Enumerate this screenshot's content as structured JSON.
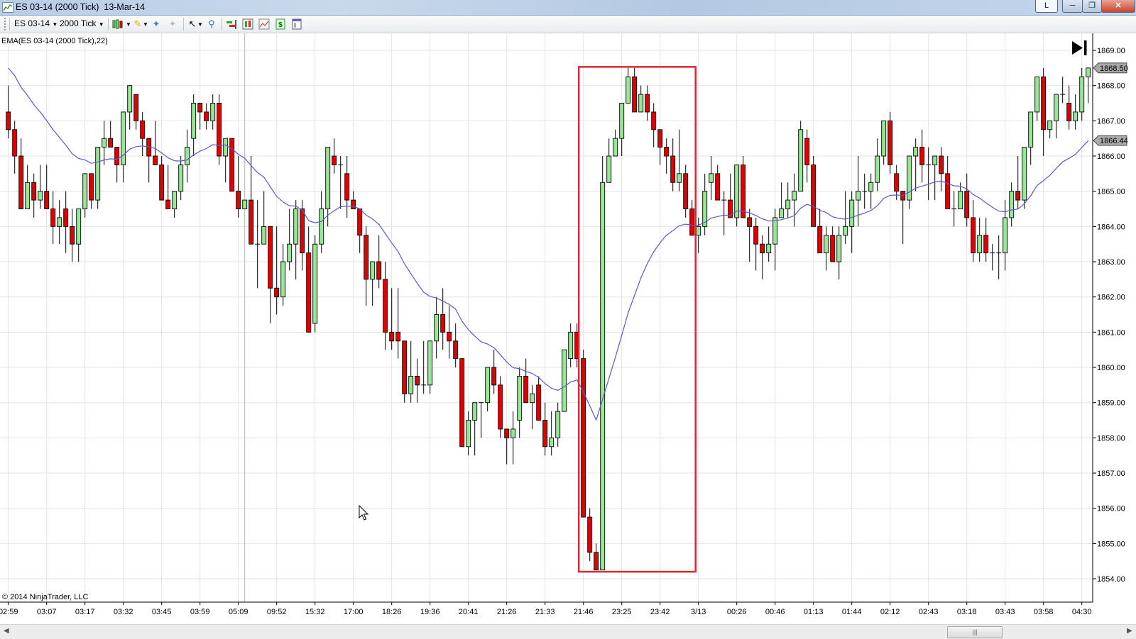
{
  "window": {
    "title": "ES 03-14 (2000 Tick)  13-Mar-14",
    "l_button": "L",
    "minimize_icon": "minimize-icon",
    "restore_icon": "restore-icon",
    "close_icon": "close-icon"
  },
  "toolbar": {
    "instrument": "ES 03-14",
    "interval": "2000 Tick",
    "icons": [
      "chart-style-icon",
      "drawing-pencil-icon",
      "add-indicator-icon",
      "remove-indicator-icon",
      "pointer-icon",
      "zoom-icon",
      "orders-icon",
      "strategy-icon",
      "chart-trader-icon",
      "dollar-icon",
      "properties-icon"
    ]
  },
  "indicator_label": "EMA(ES 03-14 (2000 Tick),22)",
  "copyright": "© 2014 NinjaTrader, LLC",
  "price_tags": {
    "last_price": "1868.50",
    "ema_value": "1866.44"
  },
  "colors": {
    "up": "#98e698",
    "down": "#e00000",
    "ema": "#5a5ac8",
    "highlight_box": "#e0282e",
    "grid": "#e3e3e3"
  },
  "chart_data": {
    "type": "candlestick",
    "instrument": "ES 03-14",
    "ylim": [
      1854,
      1869
    ],
    "y_ticks": [
      "1854.00",
      "1855.00",
      "1856.00",
      "1857.00",
      "1858.00",
      "1859.00",
      "1860.00",
      "1861.00",
      "1862.00",
      "1863.00",
      "1864.00",
      "1865.00",
      "1866.00",
      "1867.00",
      "1868.00",
      "1869.00"
    ],
    "x_ticks": [
      "02:59",
      "03:07",
      "03:17",
      "03:32",
      "03:45",
      "03:59",
      "05:09",
      "09:52",
      "15:32",
      "17:00",
      "18:26",
      "19:36",
      "20:41",
      "21:26",
      "21:33",
      "21:46",
      "23:25",
      "23:42",
      "3/13",
      "00:26",
      "00:46",
      "01:13",
      "01:44",
      "02:12",
      "02:43",
      "03:18",
      "03:43",
      "03:58",
      "04:30"
    ],
    "grid": true,
    "indicator": {
      "type": "EMA",
      "period": 22,
      "last_value": 1866.44
    },
    "highlight_box": {
      "from_bar": 91,
      "to_bar": 108,
      "price_top": 1868.5,
      "price_bottom": 1854.25
    },
    "ohlc_fields": [
      "open",
      "high",
      "low",
      "close"
    ],
    "bars": [
      [
        1867.25,
        1868,
        1866.5,
        1866.75
      ],
      [
        1866.75,
        1867,
        1865.5,
        1866
      ],
      [
        1866,
        1866.5,
        1864.5,
        1864.5
      ],
      [
        1864.5,
        1865.75,
        1864.5,
        1865.25
      ],
      [
        1865.25,
        1865.5,
        1864.25,
        1864.75
      ],
      [
        1864.75,
        1865.75,
        1864.5,
        1865
      ],
      [
        1865,
        1865.75,
        1864.5,
        1864.5
      ],
      [
        1864.5,
        1865,
        1863.5,
        1864
      ],
      [
        1864,
        1864.75,
        1863.5,
        1864.25
      ],
      [
        1864.5,
        1865,
        1863.25,
        1864
      ],
      [
        1864,
        1864.5,
        1863,
        1863.5
      ],
      [
        1863.5,
        1864.5,
        1863,
        1864.5
      ],
      [
        1864.5,
        1865.5,
        1864.25,
        1865.5
      ],
      [
        1865.5,
        1865.5,
        1864.5,
        1864.75
      ],
      [
        1864.75,
        1866.25,
        1864.5,
        1866.25
      ],
      [
        1866.25,
        1867,
        1865.75,
        1866.5
      ],
      [
        1866.5,
        1867,
        1866.25,
        1866.25
      ],
      [
        1866.25,
        1866.25,
        1865.25,
        1865.75
      ],
      [
        1865.75,
        1867.25,
        1865.25,
        1867.25
      ],
      [
        1867.25,
        1868,
        1866.75,
        1868
      ],
      [
        1867.75,
        1867.75,
        1866.75,
        1867
      ],
      [
        1867,
        1867.25,
        1866,
        1866.5
      ],
      [
        1866.5,
        1866.5,
        1865.25,
        1866
      ],
      [
        1866,
        1867,
        1865.75,
        1865.75
      ],
      [
        1865.75,
        1866,
        1864.75,
        1864.75
      ],
      [
        1864.75,
        1865.75,
        1864.5,
        1864.5
      ],
      [
        1864.5,
        1865,
        1864.25,
        1865
      ],
      [
        1865,
        1866,
        1864.75,
        1865.75
      ],
      [
        1865.75,
        1866.75,
        1865.25,
        1866.25
      ],
      [
        1866.5,
        1867.75,
        1866,
        1867.5
      ],
      [
        1867.5,
        1867.5,
        1866.75,
        1867.25
      ],
      [
        1867.25,
        1867.5,
        1866.75,
        1867
      ],
      [
        1867,
        1867.75,
        1866.75,
        1867.5
      ],
      [
        1867.5,
        1867.75,
        1865.75,
        1866
      ],
      [
        1866,
        1866.5,
        1865.25,
        1866.5
      ],
      [
        1866.5,
        1866.5,
        1865,
        1865
      ],
      [
        1865,
        1866,
        1864.25,
        1864.5
      ],
      [
        1864.5,
        1864.75,
        1864.5,
        1864.75
      ],
      [
        1864.75,
        1866,
        1863.5,
        1863.5
      ],
      [
        1863.5,
        1864.75,
        1862.25,
        1863.5
      ],
      [
        1863.5,
        1865,
        1863.5,
        1864
      ],
      [
        1864,
        1864,
        1861.25,
        1862.25
      ],
      [
        1862.25,
        1864,
        1861.5,
        1862
      ],
      [
        1862,
        1863.5,
        1861.75,
        1863
      ],
      [
        1863,
        1864.5,
        1862.75,
        1863.5
      ],
      [
        1863.5,
        1864.75,
        1862.5,
        1864.5
      ],
      [
        1864.5,
        1864.75,
        1862.75,
        1863.25
      ],
      [
        1863.25,
        1864,
        1861,
        1861
      ],
      [
        1861.25,
        1863.75,
        1861,
        1863.5
      ],
      [
        1863.5,
        1865,
        1863.25,
        1864.5
      ],
      [
        1864.5,
        1866.25,
        1864,
        1866.25
      ],
      [
        1866,
        1866.5,
        1865.5,
        1865.75
      ],
      [
        1865.75,
        1866,
        1864.5,
        1865.75
      ],
      [
        1865.5,
        1866,
        1864.25,
        1864.75
      ],
      [
        1864.75,
        1865,
        1864.5,
        1864.5
      ],
      [
        1864.5,
        1864.5,
        1863.25,
        1863.75
      ],
      [
        1863.75,
        1864,
        1861.75,
        1862.5
      ],
      [
        1862.5,
        1863,
        1861.75,
        1863
      ],
      [
        1863,
        1863.75,
        1862.25,
        1862.5
      ],
      [
        1862.5,
        1863,
        1860.5,
        1861
      ],
      [
        1861,
        1862.25,
        1860.5,
        1860.75
      ],
      [
        1861,
        1862.25,
        1860.25,
        1860.75
      ],
      [
        1860.75,
        1860.75,
        1859,
        1859.25
      ],
      [
        1859.25,
        1860.75,
        1859,
        1859.75
      ],
      [
        1859.75,
        1860.25,
        1859,
        1859.5
      ],
      [
        1859.5,
        1860.75,
        1859.25,
        1859.5
      ],
      [
        1859.5,
        1860.75,
        1859.25,
        1860.75
      ],
      [
        1860.75,
        1862,
        1860.25,
        1861.5
      ],
      [
        1861.5,
        1862.25,
        1860.5,
        1861
      ],
      [
        1861,
        1861.75,
        1860.25,
        1860.75
      ],
      [
        1860.75,
        1861.25,
        1860,
        1860.25
      ],
      [
        1860.25,
        1860.25,
        1857.75,
        1857.75
      ],
      [
        1857.75,
        1858.75,
        1857.5,
        1858.5
      ],
      [
        1858.5,
        1859,
        1857.5,
        1859
      ],
      [
        1859,
        1859,
        1858,
        1859
      ],
      [
        1859,
        1860,
        1858.75,
        1860
      ],
      [
        1860,
        1860.5,
        1859.25,
        1859.5
      ],
      [
        1859.5,
        1859.75,
        1858,
        1858.25
      ],
      [
        1858.25,
        1858.25,
        1857.25,
        1858
      ],
      [
        1858,
        1858.75,
        1857.25,
        1858.25
      ],
      [
        1858.5,
        1860,
        1858,
        1859.75
      ],
      [
        1859.75,
        1860.25,
        1859,
        1859
      ],
      [
        1859,
        1859.5,
        1858.25,
        1859.25
      ],
      [
        1859.5,
        1859.75,
        1858.5,
        1858.5
      ],
      [
        1858.5,
        1859,
        1857.5,
        1857.75
      ],
      [
        1857.75,
        1858.75,
        1857.5,
        1858
      ],
      [
        1858,
        1859,
        1857.75,
        1858.75
      ],
      [
        1858.75,
        1860.5,
        1858.75,
        1860.5
      ],
      [
        1860.25,
        1861.25,
        1860,
        1861
      ],
      [
        1861,
        1861.25,
        1860,
        1860.25
      ],
      [
        1860.25,
        1860.5,
        1855.75,
        1855.75
      ],
      [
        1855.75,
        1856,
        1854.5,
        1854.75
      ],
      [
        1854.75,
        1855,
        1854.25,
        1854.25
      ],
      [
        1854.25,
        1866,
        1854.25,
        1865.25
      ],
      [
        1865.25,
        1866.5,
        1865.25,
        1866
      ],
      [
        1866,
        1866.75,
        1866,
        1866.5
      ],
      [
        1866.5,
        1867.5,
        1866,
        1867.5
      ],
      [
        1867.5,
        1868.5,
        1867.5,
        1868.25
      ],
      [
        1868.25,
        1868.5,
        1867.25,
        1867.25
      ],
      [
        1867.25,
        1868,
        1867.25,
        1867.75
      ],
      [
        1867.75,
        1868,
        1867,
        1867.25
      ],
      [
        1867.25,
        1867.5,
        1866.25,
        1866.75
      ],
      [
        1866.75,
        1866.75,
        1865.75,
        1866.25
      ],
      [
        1866.25,
        1866.5,
        1865.5,
        1866
      ],
      [
        1866,
        1866.5,
        1865,
        1865.25
      ],
      [
        1865.25,
        1866.75,
        1865,
        1865.5
      ],
      [
        1865.5,
        1865.75,
        1864.25,
        1864.5
      ],
      [
        1864.5,
        1864.75,
        1863.75,
        1863.75
      ],
      [
        1863.75,
        1864.25,
        1863.25,
        1864
      ],
      [
        1864,
        1865.5,
        1863.75,
        1865
      ],
      [
        1865.25,
        1866,
        1864.75,
        1865.5
      ],
      [
        1865.5,
        1865.75,
        1864.75,
        1864.75
      ],
      [
        1864.75,
        1865,
        1863.75,
        1864.75
      ],
      [
        1864.75,
        1865.5,
        1864.25,
        1864.25
      ],
      [
        1864.25,
        1865.75,
        1864,
        1865.75
      ],
      [
        1865.75,
        1866,
        1864.25,
        1864.25
      ],
      [
        1864.25,
        1864.5,
        1863,
        1864
      ],
      [
        1864,
        1864.25,
        1862.75,
        1863.5
      ],
      [
        1863.5,
        1863.75,
        1862.5,
        1863.25
      ],
      [
        1863.25,
        1864,
        1863,
        1863.5
      ],
      [
        1863.5,
        1864.5,
        1862.75,
        1864.25
      ],
      [
        1864.25,
        1865.25,
        1864.25,
        1864.5
      ],
      [
        1864.5,
        1865.25,
        1864.25,
        1864.75
      ],
      [
        1864.75,
        1865.5,
        1864,
        1865
      ],
      [
        1865,
        1867,
        1865,
        1866.75
      ],
      [
        1866.5,
        1866.75,
        1865.25,
        1865.75
      ],
      [
        1865.75,
        1866,
        1864,
        1864
      ],
      [
        1864,
        1864.5,
        1863.25,
        1863.25
      ],
      [
        1863.25,
        1864,
        1862.75,
        1863.75
      ],
      [
        1863.75,
        1864,
        1863,
        1863
      ],
      [
        1863,
        1864,
        1862.5,
        1863.75
      ],
      [
        1863.75,
        1865,
        1863.5,
        1864
      ],
      [
        1864,
        1865,
        1863.25,
        1864.75
      ],
      [
        1864.75,
        1866,
        1864,
        1865
      ],
      [
        1865,
        1865.5,
        1864.5,
        1865
      ],
      [
        1865,
        1865.5,
        1864.5,
        1865.25
      ],
      [
        1865.25,
        1866.5,
        1865,
        1866
      ],
      [
        1866,
        1867,
        1865.75,
        1867
      ],
      [
        1867,
        1867.25,
        1865.5,
        1865.75
      ],
      [
        1865.5,
        1865.75,
        1864.75,
        1865
      ],
      [
        1865,
        1865,
        1863.5,
        1864.75
      ],
      [
        1864.75,
        1866,
        1864.5,
        1866
      ],
      [
        1866,
        1866.5,
        1865,
        1866.25
      ],
      [
        1866.25,
        1866.75,
        1865.25,
        1865.75
      ],
      [
        1865.75,
        1866.25,
        1864.75,
        1865.75
      ],
      [
        1865.75,
        1866,
        1864.75,
        1866
      ],
      [
        1866,
        1866.25,
        1865,
        1865.5
      ],
      [
        1865.5,
        1866,
        1864.5,
        1864.5
      ],
      [
        1864.5,
        1865,
        1864,
        1864.5
      ],
      [
        1864.5,
        1865.25,
        1864.5,
        1865
      ],
      [
        1865,
        1865.5,
        1864,
        1864.25
      ],
      [
        1864.25,
        1864.75,
        1863,
        1863.25
      ],
      [
        1863.25,
        1864.25,
        1863,
        1863.75
      ],
      [
        1863.75,
        1864.25,
        1863,
        1863.25
      ],
      [
        1863.25,
        1863.5,
        1862.75,
        1863.25
      ],
      [
        1863.25,
        1863.75,
        1862.5,
        1863.25
      ],
      [
        1863.25,
        1864.75,
        1862.75,
        1864.25
      ],
      [
        1864.25,
        1865.25,
        1864,
        1865
      ],
      [
        1865,
        1866,
        1864.5,
        1864.75
      ],
      [
        1864.75,
        1866.25,
        1864.5,
        1866.25
      ],
      [
        1866.25,
        1867.25,
        1865.75,
        1867.25
      ],
      [
        1867.25,
        1868.25,
        1867,
        1868.25
      ],
      [
        1868.25,
        1868.5,
        1866,
        1866.75
      ],
      [
        1866.75,
        1867,
        1866.5,
        1867
      ],
      [
        1867,
        1867.75,
        1866.5,
        1867.75
      ],
      [
        1867.75,
        1868.25,
        1867.5,
        1867.75
      ],
      [
        1867.5,
        1868,
        1866.75,
        1867
      ],
      [
        1867,
        1867.75,
        1866.75,
        1867.25
      ],
      [
        1867.25,
        1868.5,
        1867,
        1868.25
      ],
      [
        1868.25,
        1868.5,
        1867.5,
        1868.5
      ]
    ]
  }
}
